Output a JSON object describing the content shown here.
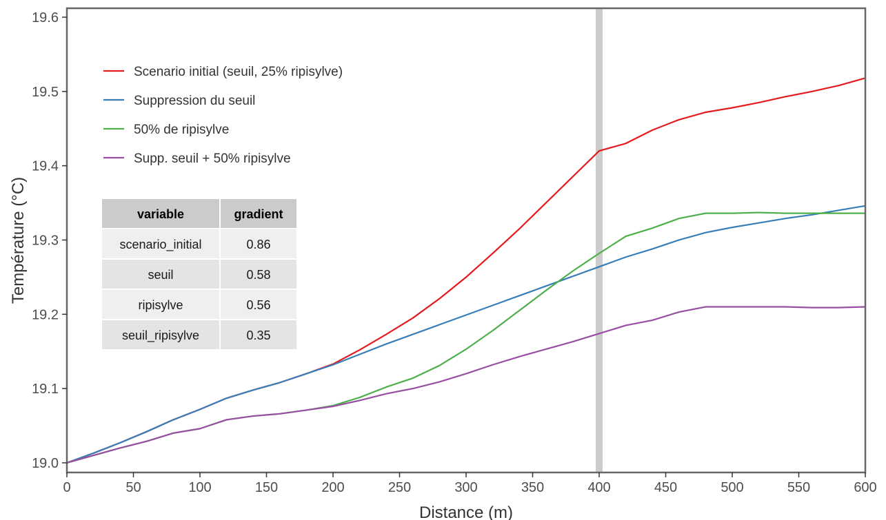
{
  "chart_data": {
    "type": "line",
    "xlabel": "Distance (m)",
    "ylabel": "Température (°C)",
    "xlim": [
      0,
      600
    ],
    "ylim": [
      18.987,
      19.612
    ],
    "x_ticks": [
      0,
      50,
      100,
      150,
      200,
      250,
      300,
      350,
      400,
      450,
      500,
      550,
      600
    ],
    "y_ticks": [
      19.0,
      19.1,
      19.2,
      19.3,
      19.4,
      19.5,
      19.6
    ],
    "y_tick_labels": [
      "19.0",
      "19.1",
      "19.2",
      "19.3",
      "19.4",
      "19.5",
      "19.6"
    ],
    "grid": false,
    "vertical_marker": {
      "x": 400,
      "color": "#cccccc"
    },
    "legend_position": "top-left",
    "x": [
      0,
      20,
      40,
      60,
      80,
      100,
      120,
      140,
      160,
      180,
      200,
      220,
      240,
      260,
      280,
      300,
      320,
      340,
      360,
      380,
      400,
      420,
      440,
      460,
      480,
      500,
      520,
      540,
      560,
      580,
      600
    ],
    "series": [
      {
        "name": "Scenario initial (seuil, 25% ripisylve)",
        "color": "#e41a1c",
        "values": [
          19.0,
          19.013,
          19.027,
          19.042,
          19.058,
          19.072,
          19.087,
          19.098,
          19.108,
          19.12,
          19.133,
          19.152,
          19.173,
          19.195,
          19.221,
          19.25,
          19.282,
          19.315,
          19.35,
          19.385,
          19.42,
          19.43,
          19.448,
          19.462,
          19.472,
          19.478,
          19.485,
          19.493,
          19.5,
          19.508,
          19.518
        ]
      },
      {
        "name": "Suppression du seuil",
        "color": "#377eb8",
        "values": [
          19.0,
          19.013,
          19.027,
          19.042,
          19.058,
          19.072,
          19.087,
          19.098,
          19.108,
          19.12,
          19.132,
          19.146,
          19.16,
          19.173,
          19.186,
          19.199,
          19.212,
          19.225,
          19.238,
          19.251,
          19.264,
          19.277,
          19.288,
          19.3,
          19.31,
          19.317,
          19.323,
          19.329,
          19.334,
          19.34,
          19.346
        ]
      },
      {
        "name": "50% de ripisylve",
        "color": "#4daf4a",
        "values": [
          19.0,
          19.01,
          19.02,
          19.029,
          19.04,
          19.046,
          19.058,
          19.063,
          19.066,
          19.071,
          19.077,
          19.088,
          19.102,
          19.114,
          19.131,
          19.153,
          19.178,
          19.205,
          19.232,
          19.258,
          19.282,
          19.305,
          19.316,
          19.329,
          19.336,
          19.336,
          19.337,
          19.336,
          19.336,
          19.336,
          19.336
        ]
      },
      {
        "name": "Supp. seuil + 50% ripisylve",
        "color": "#984ea3",
        "values": [
          19.0,
          19.01,
          19.02,
          19.029,
          19.04,
          19.046,
          19.058,
          19.063,
          19.066,
          19.071,
          19.076,
          19.084,
          19.093,
          19.1,
          19.109,
          19.12,
          19.132,
          19.143,
          19.153,
          19.163,
          19.174,
          19.185,
          19.192,
          19.203,
          19.21,
          19.21,
          19.21,
          19.21,
          19.209,
          19.209,
          19.21
        ]
      }
    ],
    "table": {
      "headers": [
        "variable",
        "gradient"
      ],
      "rows": [
        [
          "scenario_initial",
          "0.86"
        ],
        [
          "seuil",
          "0.58"
        ],
        [
          "ripisylve",
          "0.56"
        ],
        [
          "seuil_ripisylve",
          "0.35"
        ]
      ]
    }
  }
}
